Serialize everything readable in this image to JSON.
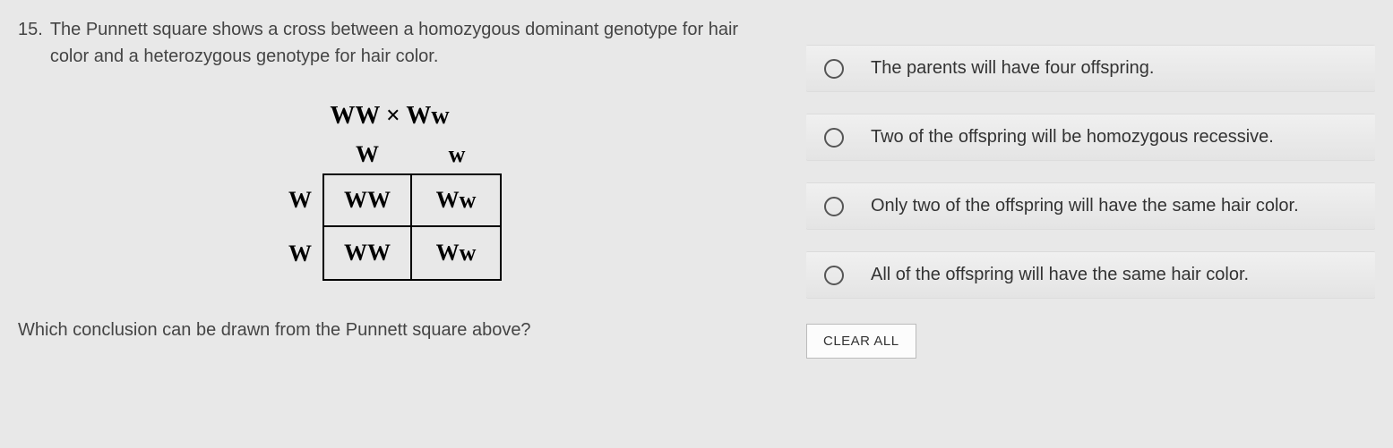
{
  "question": {
    "number": "15.",
    "text": "The Punnett square shows a cross between a homozygous dominant genotype for hair color and a heterozygous genotype for hair color.",
    "conclusion_prompt": "Which conclusion can be drawn from the Punnett square above?"
  },
  "punnett": {
    "cross_label": "WW × Ww",
    "col_headers": [
      "W",
      "w"
    ],
    "row_headers": [
      "W",
      "W"
    ],
    "cells": [
      [
        "WW",
        "Ww"
      ],
      [
        "WW",
        "Ww"
      ]
    ]
  },
  "choices": [
    "The parents will have four offspring.",
    "Two of the offspring will be homozygous recessive.",
    "Only two of the offspring will have the same hair color.",
    "All of the offspring will have the same hair color."
  ],
  "clear_label": "CLEAR ALL"
}
